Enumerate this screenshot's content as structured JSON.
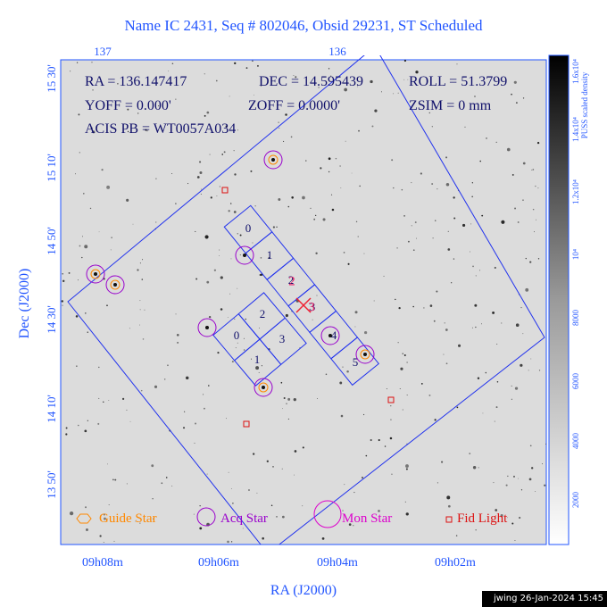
{
  "title": "Name IC 2431, Seq # 802046, Obsid 29231, ST Scheduled",
  "top_axis_ticks": [
    "137",
    "136"
  ],
  "info": [
    "RA = 136.147417",
    "DEC = 14.595439",
    "ROLL = 51.3799",
    "YOFF = 0.000'",
    "ZOFF = 0.0000'",
    "ZSIM = 0 mm",
    "ACIS PB = WT0057A034"
  ],
  "y_axis": {
    "label": "Dec (J2000)",
    "ticks": [
      "15 30'",
      "15 10'",
      "14 50'",
      "14 30'",
      "14 10'",
      "13 50'"
    ]
  },
  "x_axis": {
    "label": "RA (J2000)",
    "ticks": [
      "09h08m",
      "09h06m",
      "09h04m",
      "09h02m"
    ]
  },
  "colorbar": {
    "label": "PUSS scaled density",
    "ticks": [
      "2000",
      "4000",
      "6000",
      "8000",
      "10⁴",
      "1.2x10⁴",
      "1.4x10⁴",
      "1.6x10⁴"
    ]
  },
  "spectroscopy_chips": [
    "0",
    "1",
    "2",
    "3",
    "4",
    "5"
  ],
  "imaging_chips": [
    "0",
    "1",
    "2",
    "3"
  ],
  "aimpoint_labels": [
    "2",
    "3"
  ],
  "legend": [
    "Guide Star",
    "Acq Star",
    "Mon Star",
    "Fid Light"
  ],
  "footer": "jwing 26-Jan-2024 15:45"
}
